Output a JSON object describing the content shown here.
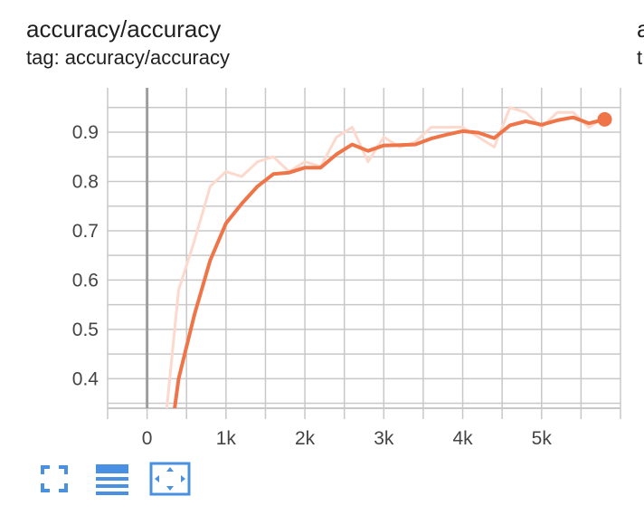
{
  "card": {
    "title": "accuracy/accuracy",
    "tag": "tag: accuracy/accuracy"
  },
  "next_card": {
    "title_fragment": "a",
    "tag_fragment": "t"
  },
  "toolbar": {
    "fullscreen_icon": "fullscreen-icon",
    "data_table_icon": "data-table-icon",
    "fit_domain_icon": "fit-to-domain-icon"
  },
  "colors": {
    "smoothed": "#ef7549",
    "raw": "#fcd9cc",
    "grid": "#c8c8c8",
    "zero_line": "#9e9e9e",
    "toolbar": "#4a90e2"
  },
  "chart_data": {
    "type": "line",
    "title": "accuracy/accuracy",
    "xlabel": "",
    "ylabel": "",
    "xlim": [
      -500,
      6000
    ],
    "ylim": [
      0.34,
      0.99
    ],
    "x_ticks": [
      0,
      1000,
      2000,
      3000,
      4000,
      5000
    ],
    "x_tick_labels": [
      "0",
      "1k",
      "2k",
      "3k",
      "4k",
      "5k"
    ],
    "y_ticks": [
      0.4,
      0.5,
      0.6,
      0.7,
      0.8,
      0.9
    ],
    "y_tick_labels": [
      "0.4",
      "0.5",
      "0.6",
      "0.7",
      "0.8",
      "0.9"
    ],
    "grid": true,
    "series": [
      {
        "role": "raw",
        "x": [
          250,
          400,
          600,
          800,
          1000,
          1200,
          1400,
          1600,
          1800,
          2000,
          2200,
          2400,
          2600,
          2800,
          3000,
          3200,
          3400,
          3600,
          3800,
          4000,
          4200,
          4400,
          4600,
          4800,
          5000,
          5200,
          5400,
          5600,
          5800
        ],
        "values": [
          0.34,
          0.58,
          0.68,
          0.79,
          0.82,
          0.81,
          0.84,
          0.85,
          0.82,
          0.84,
          0.83,
          0.89,
          0.91,
          0.84,
          0.89,
          0.87,
          0.88,
          0.91,
          0.91,
          0.91,
          0.89,
          0.87,
          0.95,
          0.94,
          0.91,
          0.94,
          0.94,
          0.91,
          0.93
        ]
      },
      {
        "role": "smoothed",
        "x": [
          350,
          400,
          600,
          800,
          1000,
          1200,
          1400,
          1600,
          1800,
          2000,
          2200,
          2400,
          2600,
          2800,
          3000,
          3200,
          3400,
          3600,
          3800,
          4000,
          4200,
          4400,
          4600,
          4800,
          5000,
          5200,
          5400,
          5600,
          5800
        ],
        "values": [
          0.34,
          0.4,
          0.53,
          0.64,
          0.715,
          0.755,
          0.79,
          0.815,
          0.818,
          0.828,
          0.828,
          0.855,
          0.875,
          0.862,
          0.873,
          0.874,
          0.875,
          0.887,
          0.895,
          0.902,
          0.899,
          0.888,
          0.914,
          0.922,
          0.915,
          0.924,
          0.93,
          0.918,
          0.926
        ]
      }
    ]
  }
}
